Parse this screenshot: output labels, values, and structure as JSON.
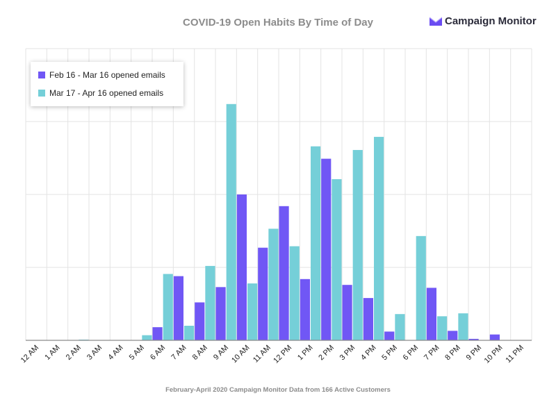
{
  "title": "COVID-19 Open Habits By Time of Day",
  "brand": {
    "name": "Campaign Monitor",
    "logo_icon": "campaign-monitor-logo-icon",
    "logo_color": "#6a4cf2"
  },
  "footer": "February-April 2020 Campaign Monitor Data from 166 Active Customers",
  "colors": {
    "series1": "#7057f5",
    "series2": "#75cfd8",
    "grid": "#e3e3e3",
    "axis": "#8a8a8a"
  },
  "chart_data": {
    "type": "bar",
    "title": "COVID-19 Open Habits By Time of Day",
    "xlabel": "",
    "ylabel": "",
    "ylim": [
      0,
      4
    ],
    "y_tick_labels_shown": false,
    "grid": true,
    "legend_position": "top-left",
    "categories": [
      "12 AM",
      "1 AM",
      "2 AM",
      "3 AM",
      "4 AM",
      "5 AM",
      "6 AM",
      "7 AM",
      "8 AM",
      "9 AM",
      "10 AM",
      "11 AM",
      "12 PM",
      "1 PM",
      "2 PM",
      "3 PM",
      "4 PM",
      "5 PM",
      "6 PM",
      "7 PM",
      "8 PM",
      "9 PM",
      "10 PM",
      "11 PM"
    ],
    "series": [
      {
        "name": "Feb 16 - Mar 16 opened emails",
        "values": [
          0,
          0,
          0,
          0,
          0,
          0,
          0.18,
          0.88,
          0.52,
          0.73,
          2.0,
          1.27,
          1.84,
          0.84,
          2.49,
          0.76,
          0.58,
          0.12,
          0,
          0.72,
          0.13,
          0.02,
          0.08,
          0
        ]
      },
      {
        "name": "Mar 17 - Apr 16 opened emails",
        "values": [
          0,
          0,
          0.01,
          0,
          0,
          0.07,
          0.91,
          0.2,
          1.02,
          3.24,
          0.78,
          1.53,
          1.29,
          2.66,
          2.21,
          2.61,
          2.79,
          0.36,
          1.43,
          0.33,
          0.37,
          0,
          0,
          0
        ]
      }
    ]
  }
}
